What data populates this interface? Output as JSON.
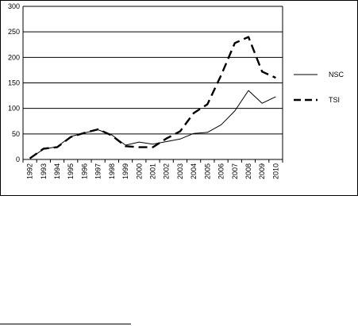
{
  "chart_data": {
    "type": "line",
    "title": "",
    "xlabel": "",
    "ylabel": "",
    "x": [
      "1992",
      "1993",
      "1994",
      "1995",
      "1996",
      "1997",
      "1998",
      "1999",
      "2000",
      "2001",
      "2002",
      "2003",
      "2004",
      "2005",
      "2006",
      "2007",
      "2008",
      "2009",
      "2010"
    ],
    "ylim": [
      0,
      300
    ],
    "yticks": [
      "0",
      "50",
      "100",
      "150",
      "200",
      "250",
      "300"
    ],
    "grid": true,
    "legend_position": "right",
    "series": [
      {
        "name": "NSC",
        "style": "solid",
        "color": "#000000",
        "values": [
          2,
          20,
          25,
          45,
          52,
          58,
          48,
          28,
          34,
          30,
          35,
          40,
          51,
          53,
          68,
          95,
          135,
          110,
          123
        ]
      },
      {
        "name": "TSI",
        "style": "dashed",
        "color": "#000000",
        "values": [
          2,
          21,
          24,
          44,
          52,
          59,
          47,
          26,
          24,
          24,
          41,
          55,
          91,
          108,
          165,
          228,
          240,
          172,
          160
        ]
      }
    ]
  }
}
